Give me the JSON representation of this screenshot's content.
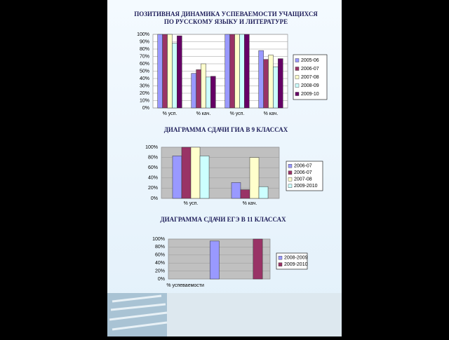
{
  "chart_data": [
    {
      "type": "bar",
      "title": [
        "ПОЗИТИВНАЯ ДИНАМИКА УСПЕВАЕМОСТИ УЧАЩИХСЯ",
        "ПО РУССКОМУ ЯЗЫКУ И ЛИТЕРАТУРЕ"
      ],
      "categories": [
        "% усп.",
        "% кач.",
        "% усп.",
        "% кач."
      ],
      "series": [
        {
          "name": "2005-06",
          "color": "#9999ff",
          "values": [
            100,
            47,
            100,
            78
          ]
        },
        {
          "name": "2006-07",
          "color": "#993366",
          "values": [
            100,
            52,
            100,
            66
          ]
        },
        {
          "name": "2007-08",
          "color": "#ffffcc",
          "values": [
            100,
            60,
            100,
            72
          ]
        },
        {
          "name": "2008-09",
          "color": "#ccffff",
          "values": [
            88,
            42,
            100,
            56
          ]
        },
        {
          "name": "2009-10",
          "color": "#660066",
          "values": [
            98,
            43,
            100,
            67
          ]
        }
      ],
      "ylim": [
        0,
        100
      ],
      "yticks": [
        {
          "value": 0,
          "label": "0%"
        },
        {
          "value": 10,
          "label": "10%"
        },
        {
          "value": 20,
          "label": "20%"
        },
        {
          "value": 30,
          "label": "30%"
        },
        {
          "value": 40,
          "label": "40%"
        },
        {
          "value": 50,
          "label": "50%"
        },
        {
          "value": 60,
          "label": "60%"
        },
        {
          "value": 70,
          "label": "70%"
        },
        {
          "value": 80,
          "label": "80%"
        },
        {
          "value": 90,
          "label": "90%"
        },
        {
          "value": 100,
          "label": "100%"
        }
      ],
      "grid": true
    },
    {
      "type": "bar",
      "title": [
        "ДИАГРАММА СДАЧИ ГИА В 9 КЛАССАХ"
      ],
      "categories": [
        "% усп.",
        "% кач."
      ],
      "series": [
        {
          "name": "2006-07",
          "color": "#9999ff",
          "values": [
            83,
            31
          ]
        },
        {
          "name": "2006-07",
          "color": "#993366",
          "values": [
            100,
            17
          ]
        },
        {
          "name": "2007-08",
          "color": "#ffffcc",
          "values": [
            100,
            80
          ]
        },
        {
          "name": "2009-2010",
          "color": "#ccffff",
          "values": [
            83,
            23
          ]
        }
      ],
      "ylim": [
        0,
        100
      ],
      "yticks": [
        {
          "value": 0,
          "label": "0%"
        },
        {
          "value": 20,
          "label": "20%"
        },
        {
          "value": 40,
          "label": "40%"
        },
        {
          "value": 60,
          "label": "60%"
        },
        {
          "value": 80,
          "label": "80%"
        },
        {
          "value": 100,
          "label": "100%"
        }
      ],
      "grid": true
    },
    {
      "type": "bar",
      "title": [
        "ДИАГРАММА СДАЧИ  ЕГЭ В 11 КЛАССАХ"
      ],
      "categories": [
        "% успеваемости",
        null,
        null
      ],
      "series": [
        {
          "name": "2008-2009",
          "color": "#9999ff",
          "values": [
            0,
            95,
            null
          ]
        },
        {
          "name": "2009-2010",
          "color": "#993366",
          "values": [
            0,
            null,
            100
          ]
        }
      ],
      "ylim": [
        0,
        100
      ],
      "yticks": [
        {
          "value": 0,
          "label": "0%"
        },
        {
          "value": 20,
          "label": "20%"
        },
        {
          "value": 40,
          "label": "40%"
        },
        {
          "value": 60,
          "label": "60%"
        },
        {
          "value": 80,
          "label": "80%"
        },
        {
          "value": 100,
          "label": "100%"
        }
      ],
      "grid": true
    }
  ]
}
